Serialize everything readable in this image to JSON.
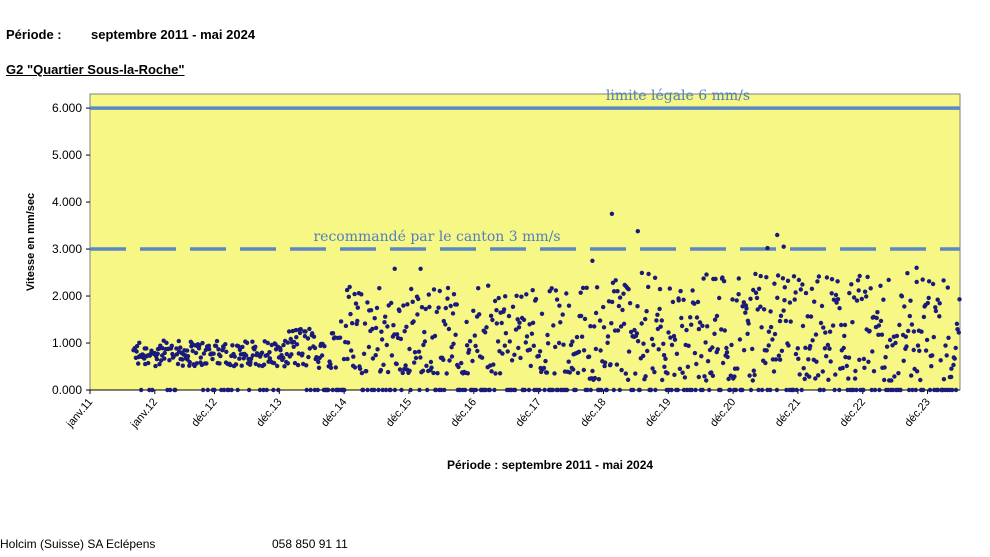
{
  "header": {
    "period_label": "Période :",
    "period_value": "septembre 2011 -  mai 2024",
    "station": "G2 \"Quartier Sous-la-Roche\""
  },
  "footer": {
    "company": "Holcim (Suisse) SA Eclépens",
    "phone": "058 850 91 11"
  },
  "colors": {
    "plot_bg": "#f7f786",
    "points": "#1a1a7a",
    "limit_lines": "#5b87c2",
    "annotation_text": "#4f7fbf"
  },
  "chart_data": {
    "type": "scatter",
    "title": "",
    "xlabel": "Période : septembre 2011 - mai 2024",
    "ylabel": "Vitesse en mm/sec",
    "ylim": [
      0,
      6.3
    ],
    "yticks": [
      "0.000",
      "1.000",
      "2.000",
      "3.000",
      "4.000",
      "5.000",
      "6.000"
    ],
    "ytick_values": [
      0,
      1,
      2,
      3,
      4,
      5,
      6
    ],
    "xticks": [
      "janv.11",
      "janv.12",
      "déc.12",
      "déc.13",
      "déc.14",
      "déc.15",
      "déc.16",
      "déc.17",
      "déc.18",
      "déc.19",
      "déc.20",
      "déc.21",
      "déc.22",
      "déc.23"
    ],
    "xtick_values": [
      2011.0,
      2012.0,
      2012.92,
      2013.92,
      2014.92,
      2015.92,
      2016.92,
      2017.92,
      2018.92,
      2019.92,
      2020.92,
      2021.92,
      2022.92,
      2023.92
    ],
    "xlim": [
      2011.0,
      2024.42
    ],
    "data_start": 2011.67,
    "data_end": 2024.42,
    "grid": false,
    "reference_lines": [
      {
        "label": "limite légale 6 mm/s",
        "y": 6.0,
        "style": "solid"
      },
      {
        "label": "recommandé par le canton 3 mm/s",
        "y": 3.0,
        "style": "dashed"
      }
    ],
    "notable_points": [
      {
        "x": 2015.7,
        "y": 2.58
      },
      {
        "x": 2016.1,
        "y": 2.58
      },
      {
        "x": 2018.75,
        "y": 2.75
      },
      {
        "x": 2019.05,
        "y": 3.75
      },
      {
        "x": 2019.45,
        "y": 3.38
      },
      {
        "x": 2021.45,
        "y": 3.02
      },
      {
        "x": 2021.6,
        "y": 3.3
      },
      {
        "x": 2021.7,
        "y": 3.05
      },
      {
        "x": 2023.75,
        "y": 2.6
      }
    ],
    "points_note": "Around 1,100 readings; most values are between 0.5 and 1.0 mm/s up to 2014, then between 0.3 and 2.5 mm/s; many readings are at 0.000."
  }
}
